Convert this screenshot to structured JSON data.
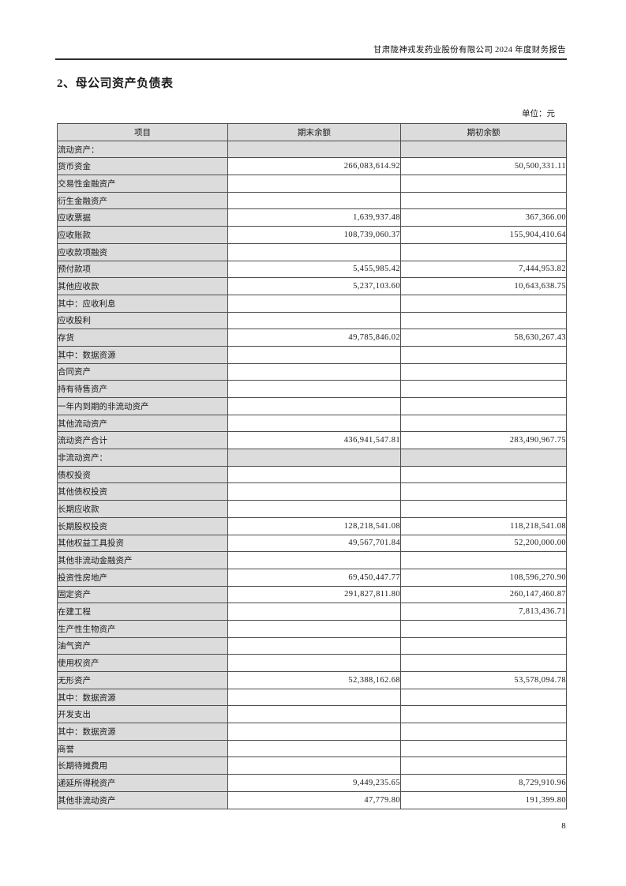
{
  "page": {
    "header_text": "甘肃陇神戎发药业股份有限公司 2024 年度财务报告",
    "section_title": "2、母公司资产负债表",
    "unit_label": "单位：元",
    "page_number": "8"
  },
  "colors": {
    "shade": "#dcdcdc",
    "border": "#4d4d4d"
  },
  "table": {
    "columns": [
      "项目",
      "期末余额",
      "期初余额"
    ],
    "rows": [
      {
        "label": "流动资产：",
        "type": "section",
        "indent": 0,
        "end": "",
        "begin": ""
      },
      {
        "label": "货币资金",
        "indent": 1,
        "end": "266,083,614.92",
        "begin": "50,500,331.11"
      },
      {
        "label": "交易性金融资产",
        "indent": 1,
        "end": "",
        "begin": ""
      },
      {
        "label": "衍生金融资产",
        "indent": 1,
        "end": "",
        "begin": ""
      },
      {
        "label": "应收票据",
        "indent": 1,
        "end": "1,639,937.48",
        "begin": "367,366.00"
      },
      {
        "label": "应收账款",
        "indent": 1,
        "end": "108,739,060.37",
        "begin": "155,904,410.64"
      },
      {
        "label": "应收款项融资",
        "indent": 1,
        "end": "",
        "begin": ""
      },
      {
        "label": "预付款项",
        "indent": 1,
        "end": "5,455,985.42",
        "begin": "7,444,953.82"
      },
      {
        "label": "其他应收款",
        "indent": 1,
        "end": "5,237,103.60",
        "begin": "10,643,638.75"
      },
      {
        "label": "其中：应收利息",
        "indent": 2,
        "end": "",
        "begin": ""
      },
      {
        "label": "应收股利",
        "indent": 3,
        "end": "",
        "begin": ""
      },
      {
        "label": "存货",
        "indent": 1,
        "end": "49,785,846.02",
        "begin": "58,630,267.43"
      },
      {
        "label": "其中：数据资源",
        "indent": 2,
        "end": "",
        "begin": ""
      },
      {
        "label": "合同资产",
        "indent": 1,
        "end": "",
        "begin": ""
      },
      {
        "label": "持有待售资产",
        "indent": 1,
        "end": "",
        "begin": ""
      },
      {
        "label": "一年内到期的非流动资产",
        "indent": 1,
        "end": "",
        "begin": ""
      },
      {
        "label": "其他流动资产",
        "indent": 1,
        "end": "",
        "begin": ""
      },
      {
        "label": "流动资产合计",
        "indent": 0,
        "end": "436,941,547.81",
        "begin": "283,490,967.75"
      },
      {
        "label": "非流动资产：",
        "type": "section",
        "indent": 0,
        "end": "",
        "begin": ""
      },
      {
        "label": "债权投资",
        "indent": 1,
        "end": "",
        "begin": ""
      },
      {
        "label": "其他债权投资",
        "indent": 1,
        "end": "",
        "begin": ""
      },
      {
        "label": "长期应收款",
        "indent": 1,
        "end": "",
        "begin": ""
      },
      {
        "label": "长期股权投资",
        "indent": 1,
        "end": "128,218,541.08",
        "begin": "118,218,541.08"
      },
      {
        "label": "其他权益工具投资",
        "indent": 1,
        "end": "49,567,701.84",
        "begin": "52,200,000.00"
      },
      {
        "label": "其他非流动金融资产",
        "indent": 1,
        "end": "",
        "begin": ""
      },
      {
        "label": "投资性房地产",
        "indent": 1,
        "end": "69,450,447.77",
        "begin": "108,596,270.90"
      },
      {
        "label": "固定资产",
        "indent": 1,
        "end": "291,827,811.80",
        "begin": "260,147,460.87"
      },
      {
        "label": "在建工程",
        "indent": 1,
        "end": "",
        "begin": "7,813,436.71"
      },
      {
        "label": "生产性生物资产",
        "indent": 1,
        "end": "",
        "begin": ""
      },
      {
        "label": "油气资产",
        "indent": 1,
        "end": "",
        "begin": ""
      },
      {
        "label": "使用权资产",
        "indent": 1,
        "end": "",
        "begin": ""
      },
      {
        "label": "无形资产",
        "indent": 1,
        "end": "52,388,162.68",
        "begin": "53,578,094.78"
      },
      {
        "label": "其中：数据资源",
        "indent": 2,
        "end": "",
        "begin": ""
      },
      {
        "label": "开发支出",
        "indent": 1,
        "end": "",
        "begin": ""
      },
      {
        "label": "其中：数据资源",
        "indent": 2,
        "end": "",
        "begin": ""
      },
      {
        "label": "商誉",
        "indent": 1,
        "end": "",
        "begin": ""
      },
      {
        "label": "长期待摊费用",
        "indent": 1,
        "end": "",
        "begin": ""
      },
      {
        "label": "递延所得税资产",
        "indent": 1,
        "end": "9,449,235.65",
        "begin": "8,729,910.96"
      },
      {
        "label": "其他非流动资产",
        "indent": 1,
        "end": "47,779.80",
        "begin": "191,399.80"
      }
    ]
  }
}
